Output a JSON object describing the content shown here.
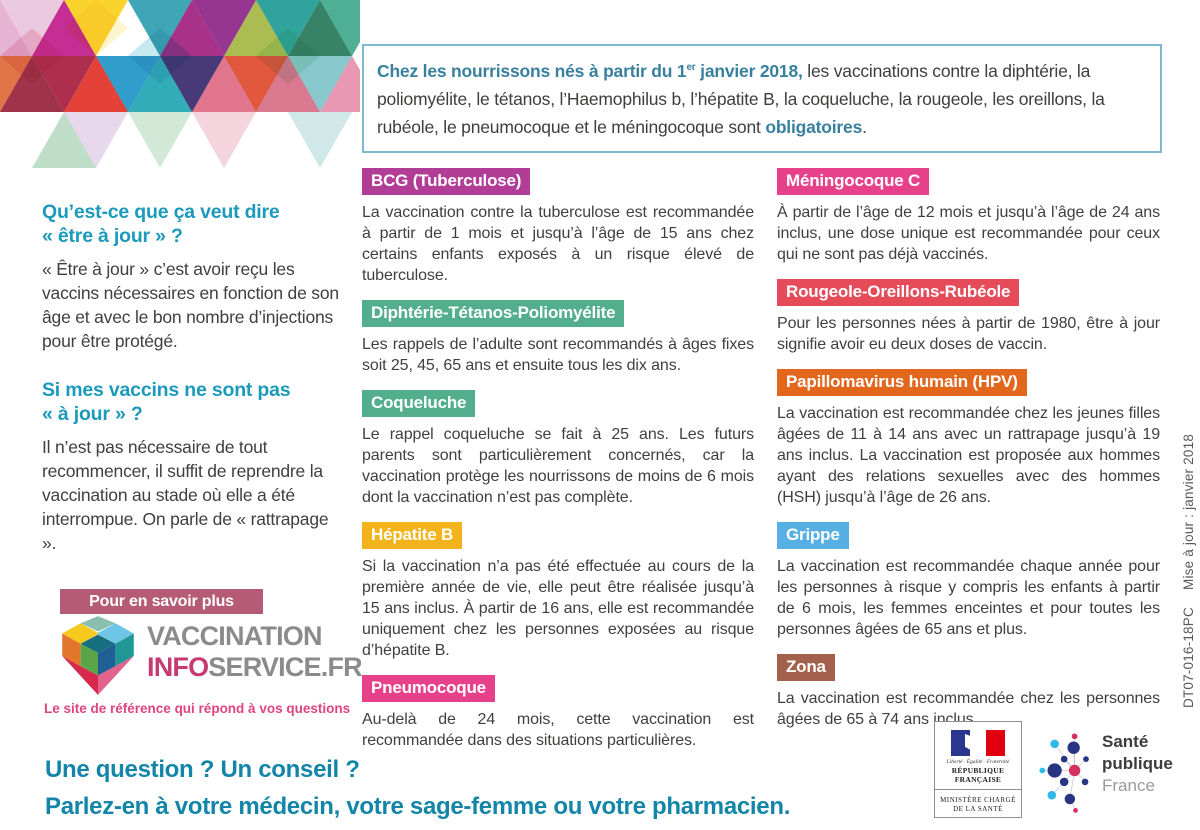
{
  "intro": {
    "bold1": "Chez les nourrissons nés à partir du 1",
    "sup": "er",
    "bold2": " janvier 2018,",
    "body": " les vaccinations contre la diphtérie, la poliomyélite, le tétanos, l’Haemophilus b, l’hépatite B, la coqueluche, la rougeole, les oreillons, la rubéole, le pneumocoque et le méningocoque sont ",
    "bold3": "obligatoires",
    "end": "."
  },
  "left": {
    "q1": {
      "title1": "Qu’est-ce que ça veut dire",
      "title2": "« être à jour » ?",
      "body": "« Être à jour » c’est avoir reçu les vaccins nécessaires en fonction de son âge et avec le bon nombre d’injections pour être protégé."
    },
    "q2": {
      "title1": "Si mes vaccins ne sont pas",
      "title2": "« à jour » ?",
      "body": "Il n’est pas nécessaire de tout recommencer, il suffit de reprendre la vaccination au stade où elle a été interrompue. On parle de « rattrapage »."
    },
    "more": "Pour en savoir plus",
    "logo": {
      "word1": "VACCINATION",
      "word2a": "INFO",
      "word2b": "SERVICE.FR"
    },
    "tagline": "Le site de référence qui répond à vos questions"
  },
  "sections": {
    "middle": [
      {
        "label": "BCG (Tuberculose)",
        "color": "#b23d97",
        "body": "La vaccination contre la tuberculose est recommandée à partir de 1 mois et jusqu’à l’âge de 15 ans chez certains enfants exposés à un risque élevé de tuberculose."
      },
      {
        "label": "Diphtérie-Tétanos-Poliomyélite",
        "color": "#53ae8d",
        "body": "Les rappels de l’adulte sont recommandés à âges fixes soit 25, 45, 65 ans et ensuite tous les dix ans."
      },
      {
        "label": "Coqueluche",
        "color": "#53ae8d",
        "body": "Le rappel coqueluche se fait à 25 ans. Les futurs parents sont particulièrement concernés, car la vaccination protège les nourrissons de moins de 6 mois dont la vaccination n’est pas complète."
      },
      {
        "label": "Hépatite B",
        "color": "#f2b31c",
        "body": "Si la vaccination n’a pas été effectuée au cours de la première année de vie, elle peut être réalisée jusqu’à 15 ans inclus. À partir de 16 ans, elle est recommandée uniquement chez les personnes exposées au risque d’hépatite B."
      },
      {
        "label": "Pneumocoque",
        "color": "#e8418b",
        "body": "Au-delà de 24 mois, cette vaccination est recommandée dans des situations particulières."
      }
    ],
    "right": [
      {
        "label": "Méningocoque C",
        "color": "#e8418b",
        "body": "À partir de l’âge de 12 mois et jusqu’à l’âge de 24 ans inclus, une dose unique est recommandée pour ceux qui ne sont pas déjà vaccinés."
      },
      {
        "label": "Rougeole-Oreillons-Rubéole",
        "color": "#e64b5a",
        "body": "Pour les personnes nées à partir de 1980, être à jour signifie avoir eu deux doses de vaccin."
      },
      {
        "label": "Papillomavirus humain (HPV)",
        "color": "#e2661c",
        "body": "La vaccination est recommandée chez les jeunes filles âgées de 11 à 14 ans avec un rattrapage jusqu’à 19 ans inclus. La vaccination est proposée aux hommes ayant des relations sexuelles avec des hommes (HSH) jusqu’à l’âge de 26 ans."
      },
      {
        "label": "Grippe",
        "color": "#57b0e3",
        "body": "La vaccination est recommandée chaque année pour les personnes à risque y compris les enfants à partir de 6 mois, les femmes enceintes et pour toutes les personnes âgées de 65 ans et plus."
      },
      {
        "label": "Zona",
        "color": "#a3614d",
        "body": "La vaccination est recommandée chez les personnes âgées de 65 à 74 ans inclus."
      }
    ]
  },
  "side": {
    "updated": "Mise à jour : janvier 2018",
    "ref": "DT07-016-18PC"
  },
  "footer": {
    "line1": "Une question ? Un conseil ?",
    "line2": "Parlez-en à votre médecin, votre sage-femme ou votre pharmacien.",
    "ministry": {
      "motto": "Liberté · Égalité · Fraternité",
      "republic": "RÉPUBLIQUE FRANÇAISE",
      "name1": "MINISTÈRE CHARGÉ",
      "name2": "DE LA SANTÉ"
    },
    "spf": {
      "line1": "Santé",
      "line2": "publique",
      "line3": "France"
    }
  },
  "colors": {
    "heading_teal": "#1b9abc",
    "intro_accent": "#39809f",
    "footer_teal": "#1285a8",
    "body_text": "#3f3f3e",
    "banner_bg": "#b65b76",
    "logo_pink": "#c73b72",
    "tagline_pink": "#e0447c",
    "intro_border": "#7db8d0"
  }
}
